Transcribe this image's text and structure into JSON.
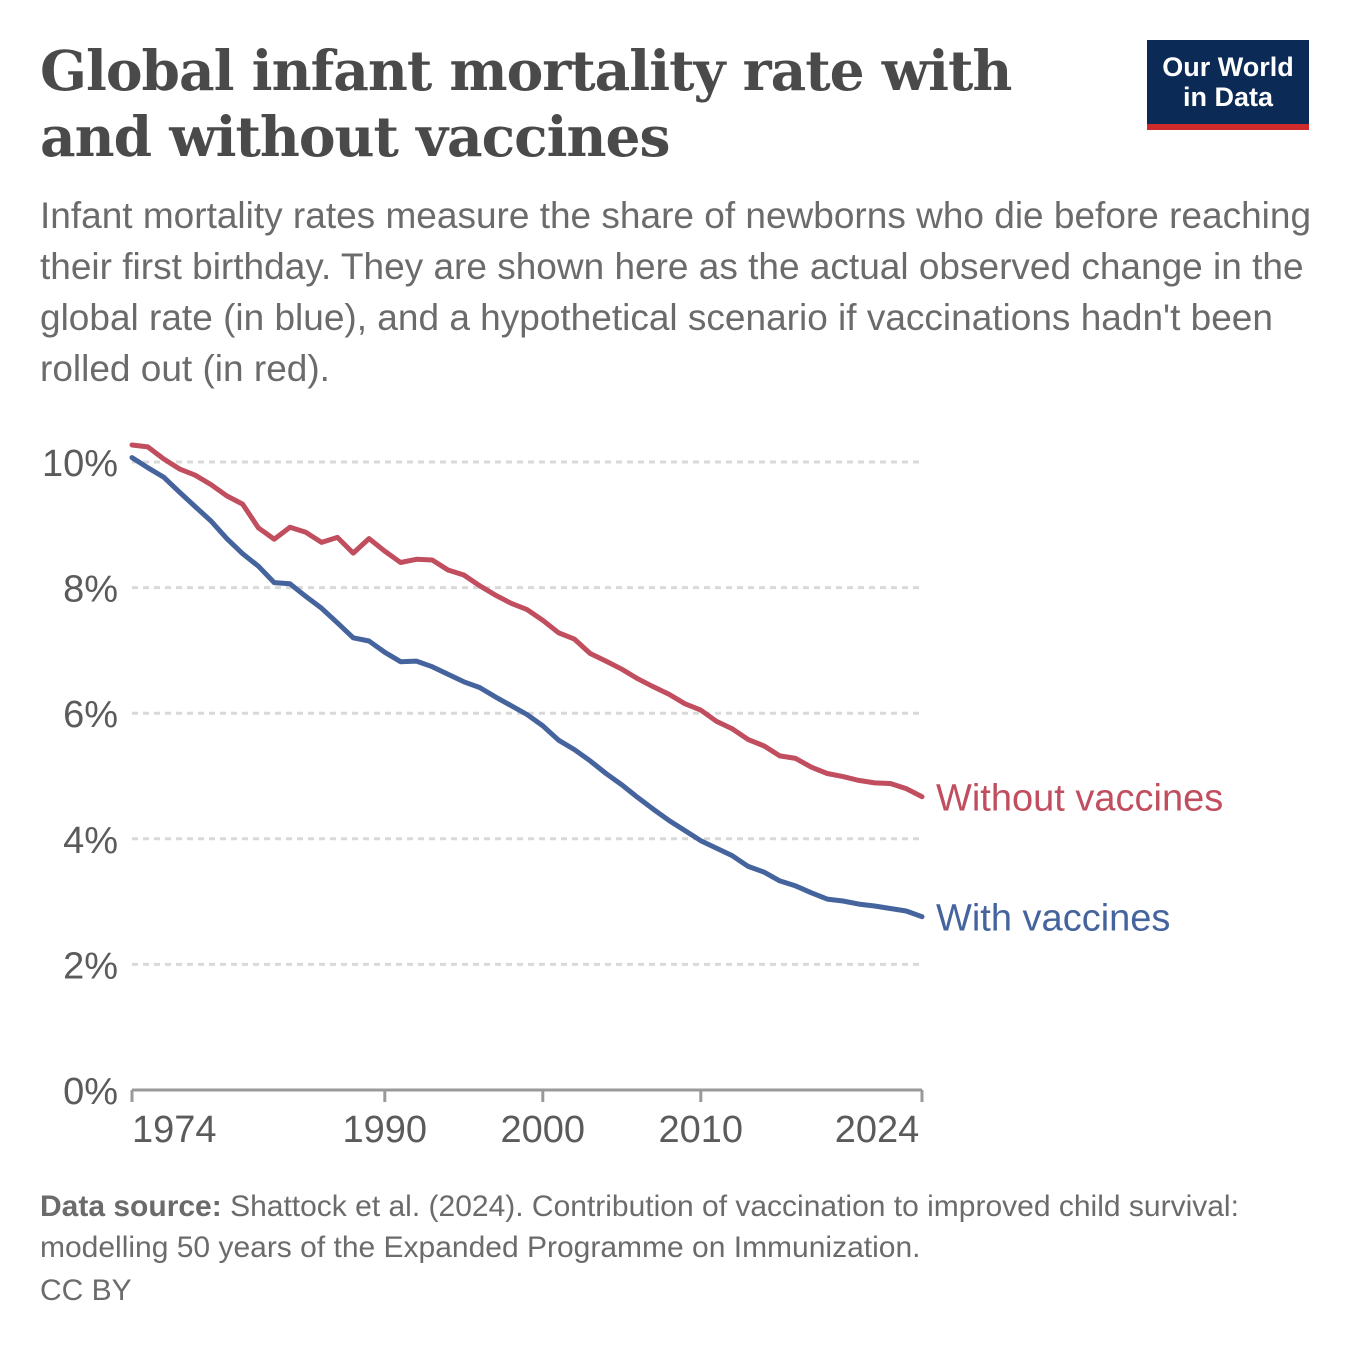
{
  "header": {
    "title": "Global infant mortality rate with and without vaccines",
    "subtitle": "Infant mortality rates measure the share of newborns who die before reaching their first birthday. They are shown here as the actual observed change in the global rate (in blue), and a hypothetical scenario if vaccinations hadn't been rolled out (in red)."
  },
  "logo": {
    "line1": "Our World",
    "line2": "in Data"
  },
  "colors": {
    "without": "#c14e5e",
    "with": "#45649e",
    "grid": "#d9d9d9",
    "axis": "#999999",
    "text": "#5b5b5b"
  },
  "chart_data": {
    "type": "line",
    "title": "Global infant mortality rate with and without vaccines",
    "xlabel": "",
    "ylabel": "",
    "xlim": [
      1974,
      2024
    ],
    "ylim": [
      0,
      10
    ],
    "x_ticks": [
      1974,
      1990,
      2000,
      2010,
      2024
    ],
    "y_ticks": [
      0,
      2,
      4,
      6,
      8,
      10
    ],
    "y_tick_labels": [
      "0%",
      "2%",
      "4%",
      "6%",
      "8%",
      "10%"
    ],
    "grid": "horizontal dotted",
    "legend": "line-end labels",
    "x": [
      1974,
      1975,
      1976,
      1977,
      1978,
      1979,
      1980,
      1981,
      1982,
      1983,
      1984,
      1985,
      1986,
      1987,
      1988,
      1989,
      1990,
      1991,
      1992,
      1993,
      1994,
      1995,
      1996,
      1997,
      1998,
      1999,
      2000,
      2001,
      2002,
      2003,
      2004,
      2005,
      2006,
      2007,
      2008,
      2009,
      2010,
      2011,
      2012,
      2013,
      2014,
      2015,
      2016,
      2017,
      2018,
      2019,
      2020,
      2021,
      2022,
      2023,
      2024
    ],
    "series": [
      {
        "name": "Without vaccines",
        "values": [
          10.27,
          10.24,
          10.05,
          9.89,
          9.79,
          9.64,
          9.46,
          9.33,
          8.95,
          8.77,
          8.96,
          8.88,
          8.72,
          8.8,
          8.55,
          8.78,
          8.58,
          8.4,
          8.45,
          8.44,
          8.28,
          8.2,
          8.03,
          7.88,
          7.75,
          7.65,
          7.48,
          7.28,
          7.18,
          6.95,
          6.83,
          6.7,
          6.55,
          6.42,
          6.3,
          6.15,
          6.05,
          5.87,
          5.75,
          5.58,
          5.48,
          5.32,
          5.28,
          5.14,
          5.04,
          4.99,
          4.93,
          4.89,
          4.88,
          4.8,
          4.67
        ]
      },
      {
        "name": "With vaccines",
        "values": [
          10.07,
          9.91,
          9.76,
          9.52,
          9.29,
          9.06,
          8.78,
          8.54,
          8.34,
          8.08,
          8.06,
          7.86,
          7.67,
          7.44,
          7.2,
          7.15,
          6.97,
          6.82,
          6.83,
          6.74,
          6.62,
          6.5,
          6.41,
          6.26,
          6.12,
          5.98,
          5.8,
          5.57,
          5.42,
          5.24,
          5.04,
          4.86,
          4.66,
          4.47,
          4.29,
          4.13,
          3.97,
          3.85,
          3.73,
          3.56,
          3.47,
          3.33,
          3.25,
          3.14,
          3.04,
          3.01,
          2.96,
          2.93,
          2.89,
          2.85,
          2.76
        ]
      }
    ]
  },
  "footer": {
    "source_label": "Data source:",
    "source_text": "Shattock et al. (2024). Contribution of vaccination to improved child survival: modelling 50 years of the Expanded Programme on Immunization.",
    "license": "CC BY"
  }
}
